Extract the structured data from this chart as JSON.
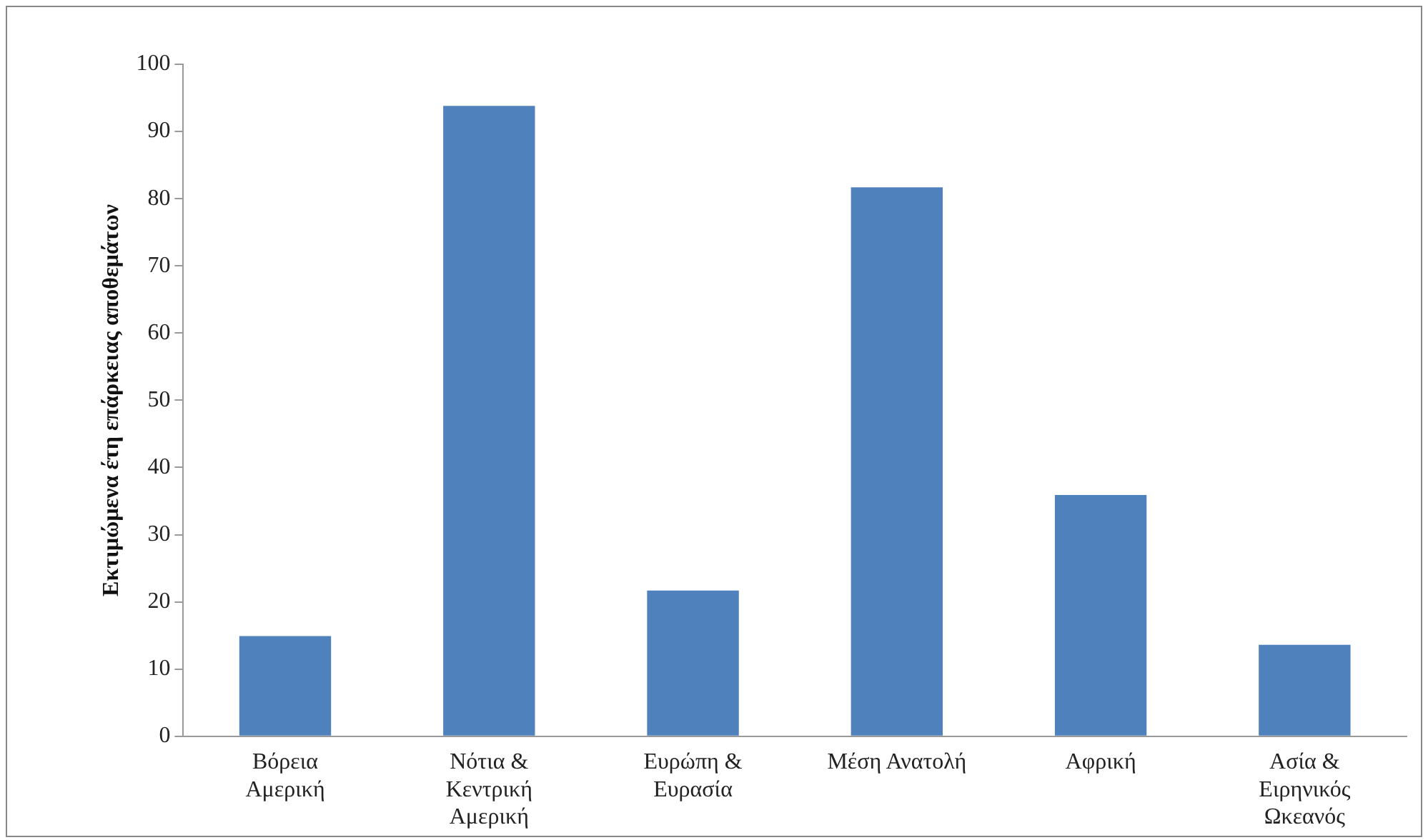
{
  "chart_data": {
    "type": "bar",
    "ylabel": "Εκτιμώμενα έτη επάρκειας αποθεμάτων",
    "categories": [
      "Βόρεια Αμερική",
      "Νότια & Κεντρική Αμερική",
      "Ευρώπη & Ευρασία",
      "Μέση Ανατολή",
      "Αφρική",
      "Ασία & Ειρηνικός Ωκεανός"
    ],
    "values": [
      14.9,
      93.8,
      21.7,
      81.7,
      35.9,
      13.6
    ],
    "color": "#4f81bd",
    "ylim": [
      0,
      100
    ],
    "yticks": [
      0,
      10,
      20,
      30,
      40,
      50,
      60,
      70,
      80,
      90,
      100
    ],
    "grid": false,
    "legend": false
  }
}
